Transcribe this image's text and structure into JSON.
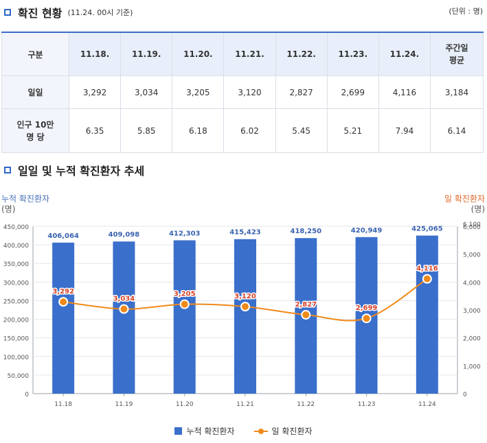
{
  "section1": {
    "title": "확진 현황",
    "note": "(11.24. 00시 기준)",
    "unit": "(단위 : 명)"
  },
  "table": {
    "headers": [
      "구분",
      "11.18.",
      "11.19.",
      "11.20.",
      "11.21.",
      "11.22.",
      "11.23.",
      "11.24.",
      "주간일",
      "평균"
    ],
    "rows": [
      {
        "label": "일일",
        "values": [
          "3,292",
          "3,034",
          "3,205",
          "3,120",
          "2,827",
          "2,699",
          "4,116",
          "3,184"
        ]
      },
      {
        "label_line1": "인구 10만",
        "label_line2": "명 당",
        "values": [
          "6.35",
          "5.85",
          "6.18",
          "6.02",
          "5.45",
          "5.21",
          "7.94",
          "6.14"
        ]
      }
    ]
  },
  "section2": {
    "title": "일일 및 누적 확진환자 추세"
  },
  "chart_data": {
    "type": "bar",
    "categories": [
      "11.18",
      "11.19",
      "11.20",
      "11.21",
      "11.22",
      "11.23",
      "11.24"
    ],
    "series": [
      {
        "name": "누적 확진환자",
        "type": "bar",
        "axis": "left",
        "values": [
          406064,
          409098,
          412303,
          415423,
          418250,
          420949,
          425065
        ],
        "labels": [
          "406,064",
          "409,098",
          "412,303",
          "415,423",
          "418,250",
          "420,949",
          "425,065"
        ],
        "color": "#3a6fcb"
      },
      {
        "name": "일 확진환자",
        "type": "line",
        "axis": "right",
        "values": [
          3292,
          3034,
          3205,
          3120,
          2827,
          2699,
          4116
        ],
        "labels": [
          "3,292",
          "3,034",
          "3,205",
          "3,120",
          "2,827",
          "2,699",
          "4,116"
        ],
        "color": "#f0891a"
      }
    ],
    "left_axis": {
      "title_line1": "누적 확진환자",
      "title_line2": "(명)",
      "ylim": [
        0,
        450000
      ],
      "ticks": [
        "0",
        "50,000",
        "100,000",
        "150,000",
        "200,000",
        "250,000",
        "300,000",
        "350,000",
        "400,000",
        "450,000"
      ]
    },
    "right_axis": {
      "title_line1": "일 확진환자",
      "title_line2": "(명)",
      "ylim": [
        0,
        6000
      ],
      "ticks": [
        "0",
        "1,000",
        "2,000",
        "3,000",
        "4,000",
        "5,000",
        "6,000",
        "6,100"
      ]
    },
    "legend": [
      "누적 확진환자",
      "일 확진환자"
    ],
    "left_color": "#4a70b8",
    "right_color": "#e0682a"
  }
}
